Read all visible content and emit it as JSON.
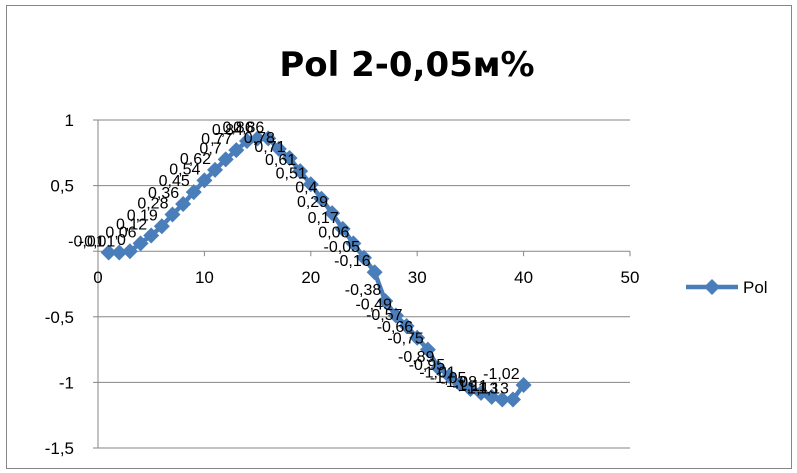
{
  "chart_data": {
    "type": "scatter",
    "title": "Pol 2-0,05м%",
    "xlabel": "",
    "ylabel": "",
    "xlim": [
      0,
      50
    ],
    "ylim": [
      -1.5,
      1
    ],
    "xticks": [
      "0",
      "10",
      "20",
      "30",
      "40",
      "50"
    ],
    "yticks": [
      "1",
      "0,5",
      "-0,5",
      "-1",
      "-1,5"
    ],
    "grid": true,
    "legend_position": "right",
    "series": [
      {
        "name": "Pol",
        "color": "#4a7ebb",
        "marker": "diamond",
        "x": [
          1,
          2,
          3,
          4,
          5,
          6,
          7,
          8,
          9,
          10,
          11,
          12,
          13,
          14,
          15,
          16,
          17,
          18,
          19,
          20,
          21,
          22,
          23,
          24,
          25,
          26,
          27,
          28,
          29,
          30,
          31,
          32,
          33,
          34,
          35,
          36,
          37,
          38,
          39,
          40
        ],
        "y": [
          -0.01,
          -0.01,
          0,
          0.06,
          0.12,
          0.19,
          0.28,
          0.36,
          0.45,
          0.54,
          0.62,
          0.7,
          0.77,
          0.84,
          0.86,
          0.86,
          0.78,
          0.71,
          0.61,
          0.51,
          0.4,
          0.29,
          0.17,
          0.06,
          -0.05,
          -0.16,
          -0.38,
          -0.49,
          -0.57,
          -0.66,
          -0.75,
          -0.89,
          -0.95,
          -1.01,
          -1.05,
          -1.08,
          -1.11,
          -1.13,
          -1.13,
          -1.02
        ],
        "labels": [
          "-0,01",
          "-0,01",
          "0",
          "0,06",
          "0,12",
          "0,19",
          "0,28",
          "0,36",
          "0,45",
          "0,54",
          "0,62",
          "0,7",
          "0,77",
          "0,84",
          "0,86",
          "0,86",
          "0,78",
          "0,71",
          "0,61",
          "0,51",
          "0,4",
          "0,29",
          "0,17",
          "0,06",
          "-0,05",
          "-0,16",
          "-0,38",
          "-0,49",
          "-0,57",
          "-0,66",
          "-0,75",
          "-0,89",
          "-0,95",
          "-1,01",
          "-1,05",
          "-1,08",
          "-1,11",
          "-1,13",
          "-1,13",
          "-1,02"
        ]
      }
    ]
  }
}
